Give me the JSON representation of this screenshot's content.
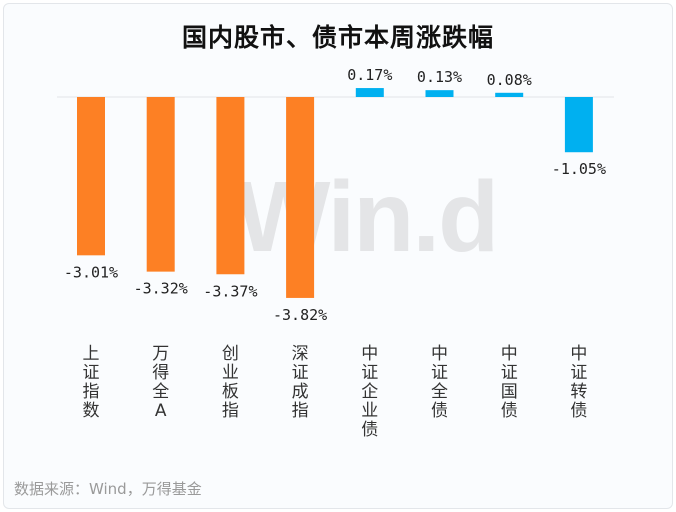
{
  "chart_data": {
    "type": "bar",
    "title": "国内股市、债市本周涨跌幅",
    "categories": [
      "上证指数",
      "万得全A",
      "创业板指",
      "深证成指",
      "中证企业债",
      "中证全债",
      "中证国债",
      "中证转债"
    ],
    "values": [
      -3.01,
      -3.32,
      -3.37,
      -3.82,
      0.17,
      0.13,
      0.08,
      -1.05
    ],
    "data_labels": [
      "-3.01%",
      "-3.32%",
      "-3.37%",
      "-3.82%",
      "0.17%",
      "0.13%",
      "0.08%",
      "-1.05%"
    ],
    "colors": [
      "#fd8024",
      "#fd8024",
      "#fd8024",
      "#fd8024",
      "#00b0f0",
      "#00b0f0",
      "#00b0f0",
      "#00b0f0"
    ],
    "xlabel": "",
    "ylabel": "",
    "grid": false
  },
  "watermark": "Win.d",
  "source": "数据来源：Wind，万得基金"
}
